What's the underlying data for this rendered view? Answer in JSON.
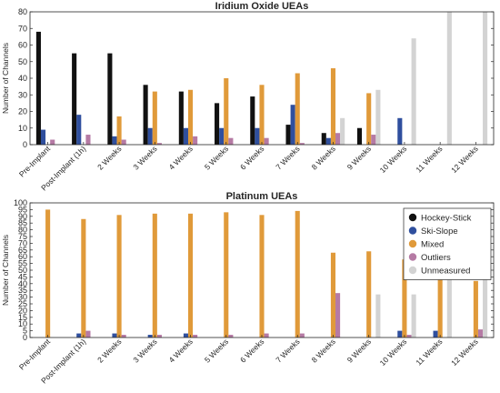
{
  "chart_data": [
    {
      "type": "bar",
      "title": "Iridium Oxide UEAs",
      "ylabel": "Number of Channels",
      "xlabel": "",
      "ylim": [
        0,
        80
      ],
      "yticks": [
        0,
        10,
        20,
        30,
        40,
        50,
        60,
        70,
        80
      ],
      "grid": false,
      "legend": "none",
      "categories": [
        "Pre-Implant",
        "Post-Implant (1h)",
        "2 Weeks",
        "3 Weeks",
        "4 Weeks",
        "5 Weeks",
        "6 Weeks",
        "7 Weeks",
        "8 Weeks",
        "9 Weeks",
        "10 Weeks",
        "11 Weeks",
        "12 Weeks"
      ],
      "series": [
        {
          "name": "Hockey-Stick",
          "color": "#111111",
          "values": [
            68,
            55,
            55,
            36,
            32,
            25,
            29,
            12,
            7,
            10,
            0,
            0,
            0
          ]
        },
        {
          "name": "Ski-Slope",
          "color": "#2f4f9e",
          "values": [
            9,
            18,
            5,
            10,
            10,
            10,
            10,
            24,
            4,
            0,
            16,
            0,
            0
          ]
        },
        {
          "name": "Mixed",
          "color": "#e09a3a",
          "values": [
            0,
            0,
            17,
            32,
            33,
            40,
            36,
            43,
            46,
            31,
            0,
            0,
            0
          ]
        },
        {
          "name": "Outliers",
          "color": "#b57aa4",
          "values": [
            3,
            6,
            3,
            1,
            5,
            4,
            4,
            1,
            7,
            6,
            0,
            0,
            0
          ]
        },
        {
          "name": "Unmeasured",
          "color": "#d3d3d3",
          "values": [
            0,
            0,
            0,
            0,
            0,
            0,
            0,
            0,
            16,
            33,
            64,
            80,
            80
          ]
        }
      ]
    },
    {
      "type": "bar",
      "title": "Platinum UEAs",
      "ylabel": "Number of Channels",
      "xlabel": "",
      "ylim": [
        0,
        100
      ],
      "yticks": [
        0,
        5,
        10,
        15,
        20,
        25,
        30,
        35,
        40,
        45,
        50,
        55,
        60,
        65,
        70,
        75,
        80,
        85,
        90,
        95,
        100
      ],
      "grid": false,
      "legend": "top-right",
      "categories": [
        "Pre-Implant",
        "Post-Implant (1h)",
        "2 Weeks",
        "3 Weeks",
        "4 Weeks",
        "5 Weeks",
        "6 Weeks",
        "7 Weeks",
        "8 Weeks",
        "9 Weeks",
        "10 Weeks",
        "11 Weeks",
        "12 Weeks"
      ],
      "series": [
        {
          "name": "Hockey-Stick",
          "color": "#111111",
          "values": [
            0,
            0,
            0,
            0,
            0,
            0,
            0,
            0,
            0,
            0,
            0,
            0,
            0
          ]
        },
        {
          "name": "Ski-Slope",
          "color": "#2f4f9e",
          "values": [
            0,
            3,
            3,
            2,
            3,
            0,
            0,
            0,
            0,
            0,
            5,
            5,
            0
          ]
        },
        {
          "name": "Mixed",
          "color": "#e09a3a",
          "values": [
            95,
            88,
            91,
            92,
            92,
            93,
            91,
            94,
            63,
            64,
            58,
            44,
            42
          ]
        },
        {
          "name": "Outliers",
          "color": "#b57aa4",
          "values": [
            0,
            5,
            2,
            2,
            2,
            2,
            3,
            3,
            33,
            0,
            2,
            0,
            6
          ]
        },
        {
          "name": "Unmeasured",
          "color": "#d3d3d3",
          "values": [
            0,
            0,
            0,
            0,
            0,
            0,
            0,
            0,
            0,
            32,
            32,
            48,
            48
          ]
        }
      ]
    }
  ],
  "colors": {
    "axis": "#262626",
    "text": "#262626"
  }
}
